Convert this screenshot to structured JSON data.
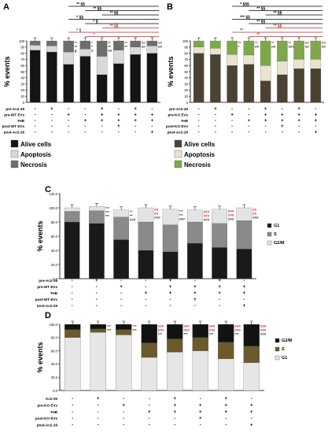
{
  "chart_data": [
    {
      "panel_letter": "A",
      "type": "bar",
      "stacked": true,
      "ylabel": "% events",
      "ylim": [
        0,
        100
      ],
      "yticks": [
        "0",
        "10",
        "20",
        "30",
        "40",
        "50",
        "60",
        "70",
        "80",
        "90",
        "100"
      ],
      "conditions": [
        {
          "name": "pre-Ac2-26",
          "signs": [
            "-",
            "+",
            "-",
            "-",
            "+",
            "-",
            "+",
            "-"
          ]
        },
        {
          "name": "pre-WT EVs",
          "signs": [
            "-",
            "-",
            "+",
            "-",
            "+",
            "+",
            "+",
            "+"
          ]
        },
        {
          "name": "FeB",
          "signs": [
            "-",
            "-",
            "-",
            "+",
            "+",
            "+",
            "+",
            "+"
          ]
        },
        {
          "name": "post-WT EVs",
          "signs": [
            "-",
            "-",
            "-",
            "-",
            "-",
            "+",
            "-",
            "-"
          ]
        },
        {
          "name": "post-Ac2-26",
          "signs": [
            "-",
            "-",
            "-",
            "-",
            "-",
            "-",
            "-",
            "+"
          ]
        }
      ],
      "series": [
        {
          "name": "Alive cells",
          "color": "#141414",
          "values": [
            85,
            82,
            62,
            75,
            45,
            63,
            78,
            80
          ]
        },
        {
          "name": "Apoptosis",
          "color": "#d9d9d9",
          "values": [
            8,
            10,
            20,
            12,
            30,
            22,
            12,
            12
          ]
        },
        {
          "name": "Necrosis",
          "color": "#6e6e6e",
          "values": [
            7,
            8,
            18,
            13,
            25,
            15,
            10,
            8
          ]
        }
      ],
      "bar_annotations": [
        "",
        "",
        "**\n**\n§",
        "*\n*\n#",
        "**\n**\n##",
        "**\n**",
        "##\n##",
        "##\n##"
      ],
      "bracket_labels": [
        "** §§",
        "** §§",
        "** §§",
        "* §§",
        "* §",
        "** §§",
        "* §",
        "*"
      ]
    },
    {
      "panel_letter": "B",
      "type": "bar",
      "stacked": true,
      "ylabel": "% events",
      "ylim": [
        0,
        100
      ],
      "yticks": [
        "0",
        "10",
        "20",
        "30",
        "40",
        "50",
        "60",
        "70",
        "80",
        "90",
        "100"
      ],
      "conditions": [
        {
          "name": "pre-Ac2-26",
          "signs": [
            "-",
            "+",
            "-",
            "-",
            "+",
            "-",
            "+",
            "-"
          ]
        },
        {
          "name": "pre-KO EVs",
          "signs": [
            "-",
            "-",
            "+",
            "-",
            "+",
            "+",
            "+",
            "+"
          ]
        },
        {
          "name": "FeB",
          "signs": [
            "-",
            "-",
            "-",
            "+",
            "+",
            "+",
            "+",
            "+"
          ]
        },
        {
          "name": "post-KO EVs",
          "signs": [
            "-",
            "-",
            "-",
            "-",
            "-",
            "+",
            "-",
            "-"
          ]
        },
        {
          "name": "post-Ac2-26",
          "signs": [
            "-",
            "-",
            "-",
            "-",
            "-",
            "-",
            "-",
            "+"
          ]
        }
      ],
      "series": [
        {
          "name": "Alive cells",
          "color": "#4a4334",
          "values": [
            80,
            78,
            60,
            62,
            35,
            45,
            55,
            55
          ]
        },
        {
          "name": "Apoptosis",
          "color": "#e8e4cf",
          "values": [
            10,
            10,
            18,
            15,
            25,
            22,
            15,
            15
          ]
        },
        {
          "name": "Necrosis",
          "color": "#7ea84a",
          "values": [
            10,
            12,
            22,
            23,
            40,
            33,
            30,
            30
          ]
        }
      ],
      "bar_annotations": [
        "",
        "",
        "**\n*",
        "**\n##",
        "**\n##",
        "**\n###",
        "##\n##",
        "##\n##"
      ],
      "bracket_labels": [
        "* §§§",
        "** §§",
        "** §§",
        "*** §§",
        "** §§",
        "** §§",
        "**",
        "**"
      ]
    },
    {
      "panel_letter": "C",
      "type": "bar",
      "stacked": true,
      "ylabel": "% events",
      "ylim": [
        0,
        120
      ],
      "yticks": [
        "0.0",
        "20.0",
        "40.0",
        "60.0",
        "80.0",
        "100.0",
        "120.0"
      ],
      "conditions": [
        {
          "name": "pre-Ac2-26",
          "signs": [
            "-",
            "+",
            "-",
            "-",
            "+",
            "-",
            "+",
            "-"
          ]
        },
        {
          "name": "pre-WT EVs",
          "signs": [
            "-",
            "-",
            "+",
            "-",
            "+",
            "+",
            "+",
            "+"
          ]
        },
        {
          "name": "FeB",
          "signs": [
            "-",
            "-",
            "-",
            "+",
            "+",
            "+",
            "+",
            "+"
          ]
        },
        {
          "name": "post-WT EVs",
          "signs": [
            "-",
            "-",
            "-",
            "-",
            "-",
            "+",
            "-",
            "-"
          ]
        },
        {
          "name": "post-Ac2-26",
          "signs": [
            "-",
            "-",
            "-",
            "-",
            "-",
            "-",
            "-",
            "+"
          ]
        }
      ],
      "series": [
        {
          "name": "G1",
          "color": "#1a1a1a",
          "values": [
            80,
            78,
            55,
            40,
            38,
            50,
            44,
            42
          ]
        },
        {
          "name": "S",
          "color": "#8a8a8a",
          "values": [
            15,
            18,
            32,
            40,
            38,
            30,
            34,
            40
          ]
        },
        {
          "name": "G2/M",
          "color": "#e4e4e4",
          "values": [
            5,
            6,
            10,
            20,
            22,
            17,
            20,
            18
          ]
        }
      ],
      "bar_annotations": [
        "",
        "***\n***\n***",
        "**\n**\n###",
        "##\n##\n###",
        "***\n***\n###",
        "###\n###\n###",
        "###\n###\n###",
        "##\n##\n###"
      ]
    },
    {
      "panel_letter": "D",
      "type": "bar",
      "stacked": true,
      "ylabel": "% events",
      "ylim": [
        0,
        100
      ],
      "yticks": [
        "0.0",
        "20.0",
        "40.0",
        "60.0",
        "80.0",
        "100.0"
      ],
      "conditions": [
        {
          "name": "Ac2-26",
          "signs": [
            "-",
            "+",
            "-",
            "-",
            "+",
            "-",
            "+",
            "-"
          ]
        },
        {
          "name": "pre-KO EVs",
          "signs": [
            "-",
            "-",
            "+",
            "-",
            "+",
            "+",
            "+",
            "+"
          ]
        },
        {
          "name": "FeB",
          "signs": [
            "-",
            "-",
            "-",
            "+",
            "+",
            "+",
            "+",
            "+"
          ]
        },
        {
          "name": "post-KO EVs",
          "signs": [
            "-",
            "-",
            "-",
            "-",
            "-",
            "+",
            "-",
            "-"
          ]
        },
        {
          "name": "post-Ac2-26",
          "signs": [
            "-",
            "-",
            "-",
            "-",
            "-",
            "-",
            "-",
            "+"
          ]
        }
      ],
      "series": [
        {
          "name": "G1",
          "color": "#e6e6e6",
          "values": [
            80,
            88,
            84,
            50,
            58,
            60,
            48,
            42
          ]
        },
        {
          "name": "S",
          "color": "#6b5a2c",
          "values": [
            12,
            5,
            8,
            22,
            20,
            20,
            25,
            25
          ]
        },
        {
          "name": "G2/M",
          "color": "#121212",
          "values": [
            8,
            7,
            8,
            28,
            22,
            20,
            27,
            33
          ]
        }
      ],
      "bar_annotations": [
        "",
        "***\n***",
        "***\n***",
        "###\n###\n***",
        "###\n###\n***",
        "###\n###\n***",
        "###\n###\n***",
        "###\n###\n###"
      ]
    }
  ]
}
